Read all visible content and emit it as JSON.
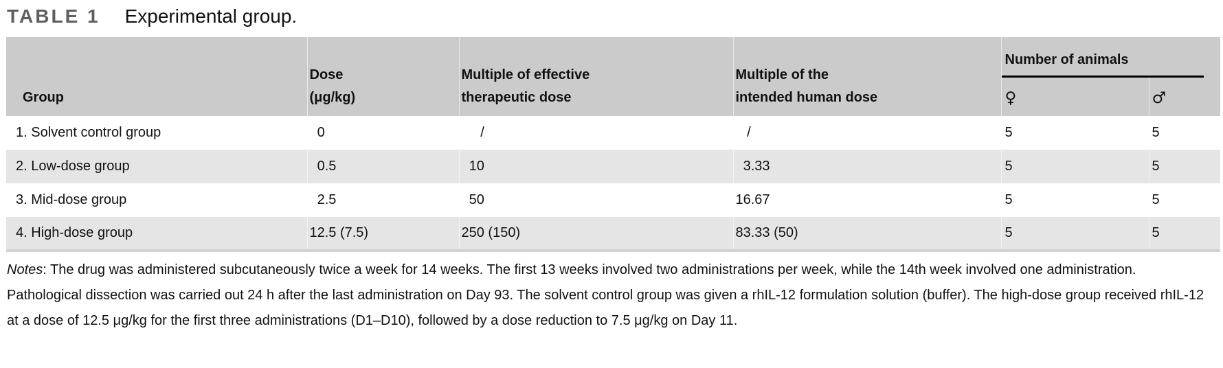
{
  "title": {
    "label": "TABLE 1",
    "caption": "Experimental group."
  },
  "table": {
    "headers": {
      "group": "Group",
      "dose": [
        "Dose",
        "(μg/kg)"
      ],
      "multiple_effective": [
        "Multiple of effective",
        "therapeutic dose"
      ],
      "multiple_human": [
        "Multiple of the",
        "intended human dose"
      ],
      "number_of_animals": "Number of animals",
      "female_symbol": "♀",
      "male_symbol": "♂"
    },
    "rows": [
      {
        "group": "1. Solvent control group",
        "dose": "0",
        "multiple_effective": "/",
        "multiple_human": "/",
        "females": "5",
        "males": "5"
      },
      {
        "group": "2. Low-dose group",
        "dose": "0.5",
        "multiple_effective": "10",
        "multiple_human": "3.33",
        "females": "5",
        "males": "5"
      },
      {
        "group": "3. Mid-dose group",
        "dose": "2.5",
        "multiple_effective": "50",
        "multiple_human": "16.67",
        "females": "5",
        "males": "5"
      },
      {
        "group": "4. High-dose group",
        "dose": "12.5 (7.5)",
        "multiple_effective": "250 (150)",
        "multiple_human": "83.33 (50)",
        "females": "5",
        "males": "5"
      }
    ]
  },
  "notes": {
    "label": "Notes",
    "text": ": The drug was administered subcutaneously twice a week for 14 weeks. The first 13 weeks involved two administrations per week, while the 14th week involved one administration. Pathological dissection was carried out 24 h after the last administration on Day 93. The solvent control group was given a rhIL-12 formulation solution (buffer). The high-dose group received rhIL-12 at a dose of 12.5 μg/kg for the first three administrations (D1–D10), followed by a dose reduction to 7.5 μg/kg on Day 11."
  },
  "colors": {
    "header_bg": "#cbcbcb",
    "stripe_bg": "#e5e5e5",
    "bottom_border": "#d2d2d2",
    "caption_label_gray": "#5f5f5f",
    "rule_black": "#000000"
  }
}
